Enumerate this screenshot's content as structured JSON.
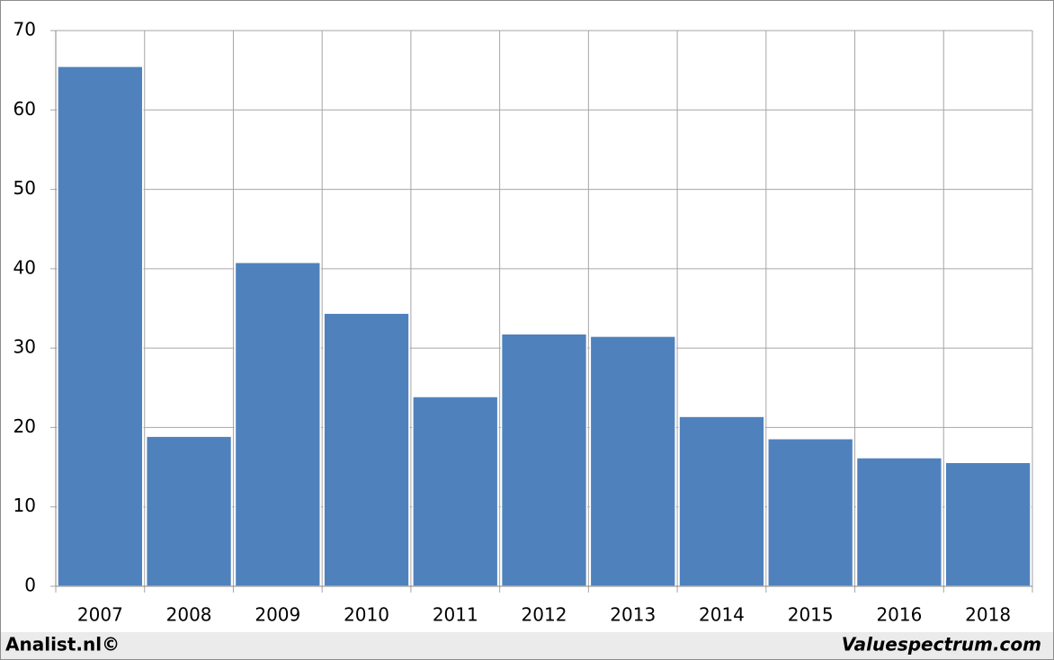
{
  "chart_data": {
    "type": "bar",
    "categories": [
      "2007",
      "2008",
      "2009",
      "2010",
      "2011",
      "2012",
      "2013",
      "2014",
      "2015",
      "2016",
      "2018"
    ],
    "values": [
      65.5,
      18.9,
      40.8,
      34.4,
      23.9,
      31.8,
      31.5,
      21.4,
      18.6,
      16.2,
      15.6
    ],
    "color": "#4f81bd",
    "ylim": [
      0,
      70
    ],
    "yticks": [
      0,
      10,
      20,
      30,
      40,
      50,
      60,
      70
    ],
    "grid": true
  },
  "footer": {
    "left": "Analist.nl©",
    "right": "Valuespectrum.com"
  }
}
